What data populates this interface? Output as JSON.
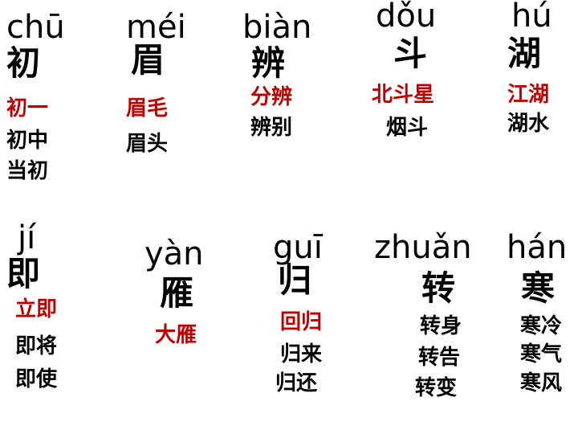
{
  "cards": [
    {
      "id": "chu",
      "pinyin": "chū",
      "char": "初",
      "words": [
        "初一",
        "初中",
        "当初"
      ]
    },
    {
      "id": "mei",
      "pinyin": "méi",
      "char": "眉",
      "words": [
        "眉毛",
        "眉头"
      ]
    },
    {
      "id": "bian",
      "pinyin": "biàn",
      "char": "辨",
      "words": [
        "分辨",
        "辨别"
      ]
    },
    {
      "id": "dou",
      "pinyin": "dǒu",
      "char": "斗",
      "words": [
        "北斗星",
        "烟斗"
      ]
    },
    {
      "id": "hu",
      "pinyin": "hú",
      "char": "湖",
      "words": [
        "江湖",
        "湖水"
      ]
    },
    {
      "id": "ji",
      "pinyin": "jí",
      "char": "即",
      "words": [
        "立即",
        "即将",
        "即使"
      ]
    },
    {
      "id": "yan",
      "pinyin": "yàn",
      "char": "雁",
      "words": [
        "大雁"
      ]
    },
    {
      "id": "gui",
      "pinyin": "guī",
      "char": "归",
      "words": [
        "回归",
        "归来",
        "归还"
      ]
    },
    {
      "id": "zhuan",
      "pinyin": "zhuǎn",
      "char": "转",
      "words": [
        "转身",
        "转告",
        "转变"
      ]
    },
    {
      "id": "han",
      "pinyin": "hán",
      "char": "寒",
      "words": [
        "寒冷",
        "寒气",
        "寒风"
      ]
    }
  ],
  "colors": {
    "highlight": "#c00000",
    "text": "#000000"
  }
}
